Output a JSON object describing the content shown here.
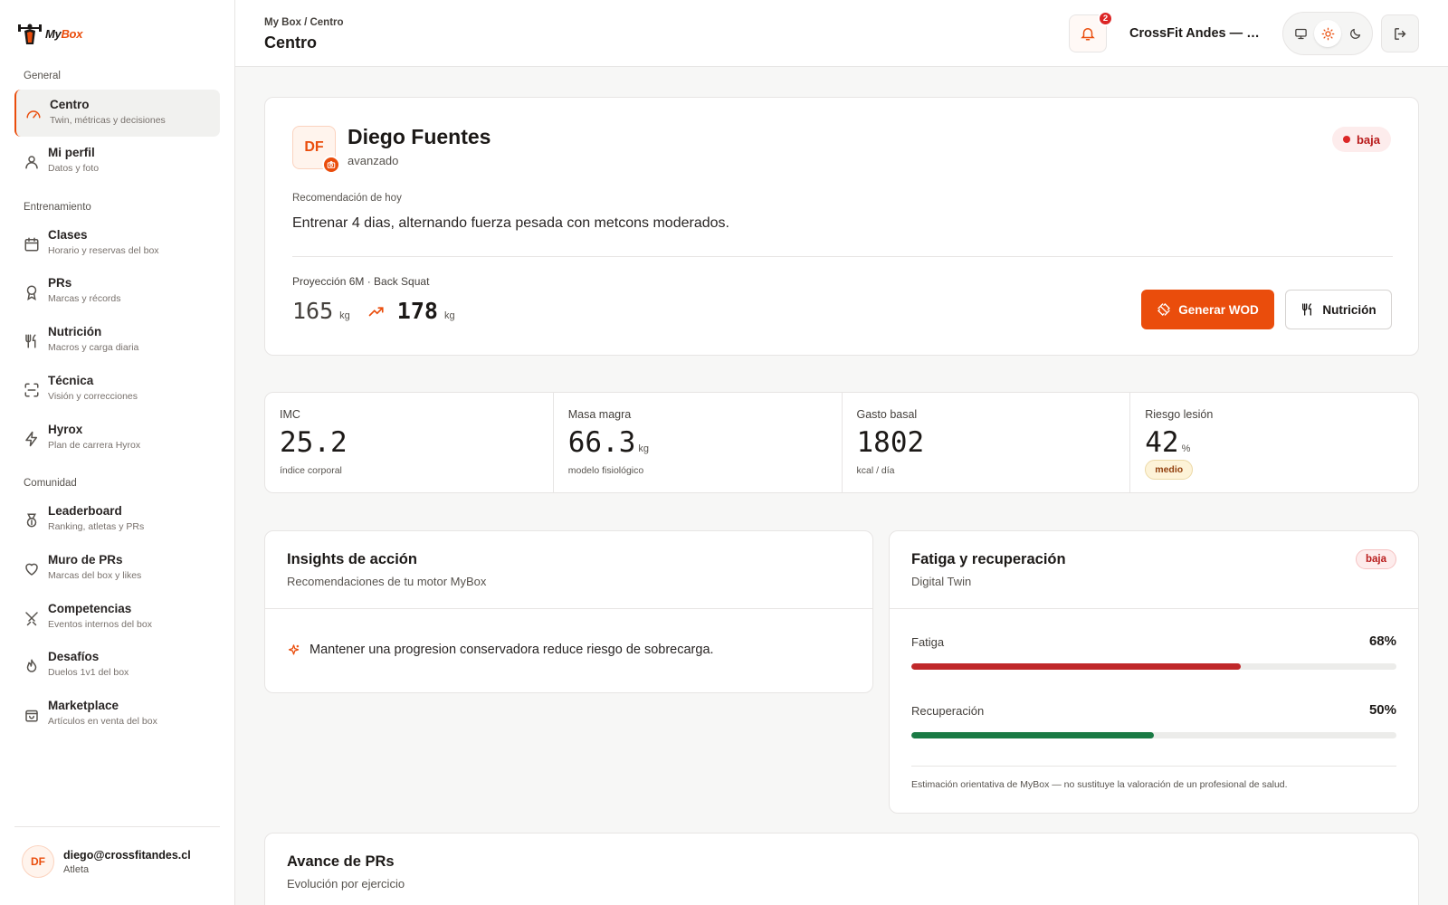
{
  "brand": {
    "name_part1": "My",
    "name_part2": "Box"
  },
  "sidebar": {
    "sections": [
      {
        "label": "General"
      },
      {
        "label": "Entrenamiento"
      },
      {
        "label": "Comunidad"
      }
    ],
    "items": [
      {
        "title": "Centro",
        "subtitle": "Twin, métricas y decisiones",
        "icon": "gauge-icon",
        "active": true
      },
      {
        "title": "Mi perfil",
        "subtitle": "Datos y foto",
        "icon": "user-icon"
      },
      {
        "title": "Clases",
        "subtitle": "Horario y reservas del box",
        "icon": "calendar-icon"
      },
      {
        "title": "PRs",
        "subtitle": "Marcas y récords",
        "icon": "award-icon"
      },
      {
        "title": "Nutrición",
        "subtitle": "Macros y carga diaria",
        "icon": "utensils-icon"
      },
      {
        "title": "Técnica",
        "subtitle": "Visión y correcciones",
        "icon": "scan-icon"
      },
      {
        "title": "Hyrox",
        "subtitle": "Plan de carrera Hyrox",
        "icon": "bolt-icon"
      },
      {
        "title": "Leaderboard",
        "subtitle": "Ranking, atletas y PRs",
        "icon": "medal-icon"
      },
      {
        "title": "Muro de PRs",
        "subtitle": "Marcas del box y likes",
        "icon": "heart-icon"
      },
      {
        "title": "Competencias",
        "subtitle": "Eventos internos del box",
        "icon": "swords-icon"
      },
      {
        "title": "Desafíos",
        "subtitle": "Duelos 1v1 del box",
        "icon": "flame-icon"
      },
      {
        "title": "Marketplace",
        "subtitle": "Artículos en venta del box",
        "icon": "bag-icon"
      }
    ],
    "user": {
      "initials": "DF",
      "email": "diego@crossfitandes.cl",
      "role": "Atleta"
    }
  },
  "header": {
    "breadcrumb": "My Box / Centro",
    "title": "Centro",
    "notifications_count": "2",
    "box_name": "CrossFit Andes — Providencia"
  },
  "hero": {
    "initials": "DF",
    "name": "Diego Fuentes",
    "level": "avanzado",
    "risk_label": "baja",
    "rec_label": "Recomendación de hoy",
    "rec_text": "Entrenar 4 dias, alternando fuerza pesada con metcons moderados.",
    "projection_label": "Proyección 6M · Back Squat",
    "projection_from": "165",
    "projection_to": "178",
    "unit": "kg",
    "btn_wod": "Generar WOD",
    "btn_nutrition": "Nutrición"
  },
  "metrics": [
    {
      "label": "IMC",
      "value": "25.2",
      "unit": "",
      "sub": "índice corporal"
    },
    {
      "label": "Masa magra",
      "value": "66.3",
      "unit": "kg",
      "sub": "modelo fisiológico"
    },
    {
      "label": "Gasto basal",
      "value": "1802",
      "unit": "",
      "sub": "kcal / día"
    },
    {
      "label": "Riesgo lesión",
      "value": "42",
      "unit": "%",
      "badge": "medio"
    }
  ],
  "insights": {
    "title": "Insights de acción",
    "subtitle": "Recomendaciones de tu motor MyBox",
    "items": [
      "Mantener una progresion conservadora reduce riesgo de sobrecarga."
    ]
  },
  "fatigue": {
    "title": "Fatiga y recuperación",
    "subtitle": "Digital Twin",
    "badge": "baja",
    "bars": [
      {
        "label": "Fatiga",
        "value_text": "68%",
        "fraction": 0.68,
        "color": "#c0282a"
      },
      {
        "label": "Recuperación",
        "value_text": "50%",
        "fraction": 0.5,
        "color": "#1a7a44"
      }
    ],
    "disclaimer": "Estimación orientativa de MyBox — no sustituye la valoración de un profesional de salud."
  },
  "prs": {
    "title": "Avance de PRs",
    "subtitle": "Evolución por ejercicio"
  },
  "colors": {
    "accent": "#ea4d0c"
  }
}
